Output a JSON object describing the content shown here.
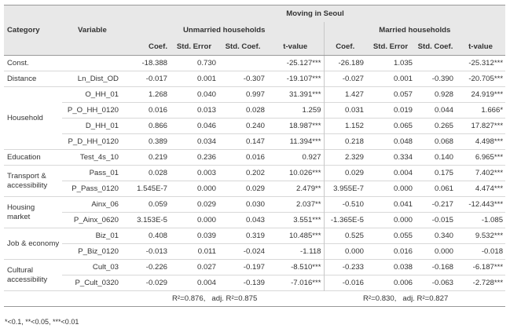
{
  "header": {
    "group": "Moving in Seoul",
    "category": "Category",
    "variable": "Variable",
    "unmarried": "Unmarried households",
    "married": "Married households",
    "cols": [
      "Coef.",
      "Std. Error",
      "Std. Coef.",
      "t-value",
      "Coef.",
      "Std. Error",
      "Std. Coef.",
      "t-value"
    ]
  },
  "rows": [
    {
      "cat": "Const.",
      "var": "",
      "vals": [
        "-18.388",
        "0.730",
        "",
        "-25.127***",
        "-26.189",
        "1.035",
        "",
        "-25.312***"
      ]
    },
    {
      "cat": "Distance",
      "var": "Ln_Dist_OD",
      "vals": [
        "-0.017",
        "0.001",
        "-0.307",
        "-19.107***",
        "-0.027",
        "0.001",
        "-0.390",
        "-20.705***"
      ]
    },
    {
      "cat": "Household",
      "var": "O_HH_01",
      "vals": [
        "1.268",
        "0.040",
        "0.997",
        "31.391***",
        "1.427",
        "0.057",
        "0.928",
        "24.919***"
      ]
    },
    {
      "cat": "",
      "var": "P_O_HH_0120",
      "vals": [
        "0.016",
        "0.013",
        "0.028",
        "1.259",
        "0.031",
        "0.019",
        "0.044",
        "1.666*"
      ]
    },
    {
      "cat": "",
      "var": "D_HH_01",
      "vals": [
        "0.866",
        "0.046",
        "0.240",
        "18.987***",
        "1.152",
        "0.065",
        "0.265",
        "17.827***"
      ]
    },
    {
      "cat": "",
      "var": "P_D_HH_0120",
      "vals": [
        "0.389",
        "0.034",
        "0.147",
        "11.394***",
        "0.218",
        "0.048",
        "0.068",
        "4.498***"
      ]
    },
    {
      "cat": "Education",
      "var": "Test_4s_10",
      "vals": [
        "0.219",
        "0.236",
        "0.016",
        "0.927",
        "2.329",
        "0.334",
        "0.140",
        "6.965***"
      ]
    },
    {
      "cat": "Transport & accessibility",
      "var": "Pass_01",
      "vals": [
        "0.028",
        "0.003",
        "0.202",
        "10.026***",
        "0.029",
        "0.004",
        "0.175",
        "7.402***"
      ]
    },
    {
      "cat": "",
      "var": "P_Pass_0120",
      "vals": [
        "1.545E-7",
        "0.000",
        "0.029",
        "2.479**",
        "3.955E-7",
        "0.000",
        "0.061",
        "4.474***"
      ]
    },
    {
      "cat": "Housing market",
      "var": "Ainx_06",
      "vals": [
        "0.059",
        "0.029",
        "0.030",
        "2.037**",
        "-0.510",
        "0.041",
        "-0.217",
        "-12.443***"
      ]
    },
    {
      "cat": "",
      "var": "P_Ainx_0620",
      "vals": [
        "3.153E-5",
        "0.000",
        "0.043",
        "3.551***",
        "-1.365E-5",
        "0.000",
        "-0.015",
        "-1.085"
      ]
    },
    {
      "cat": "Job & economy",
      "var": "Biz_01",
      "vals": [
        "0.408",
        "0.039",
        "0.319",
        "10.485***",
        "0.525",
        "0.055",
        "0.340",
        "9.532***"
      ]
    },
    {
      "cat": "",
      "var": "P_Biz_0120",
      "vals": [
        "-0.013",
        "0.011",
        "-0.024",
        "-1.118",
        "0.000",
        "0.016",
        "0.000",
        "-0.018"
      ]
    },
    {
      "cat": "Cultural accessibility",
      "var": "Cult_03",
      "vals": [
        "-0.226",
        "0.027",
        "-0.197",
        "-8.510***",
        "-0.233",
        "0.038",
        "-0.168",
        "-6.187***"
      ]
    },
    {
      "cat": "",
      "var": "P_Cult_0320",
      "vals": [
        "-0.029",
        "0.004",
        "-0.139",
        "-7.016***",
        "-0.016",
        "0.006",
        "-0.063",
        "-2.728***"
      ]
    }
  ],
  "fit": {
    "unmarried_r2": "R²=0.876,",
    "unmarried_adj": "adj. R²=0.875",
    "married_r2": "R²=0.830,",
    "married_adj": "adj. R²=0.827"
  },
  "note": "*<0.1, **<0.05, ***<0.01"
}
